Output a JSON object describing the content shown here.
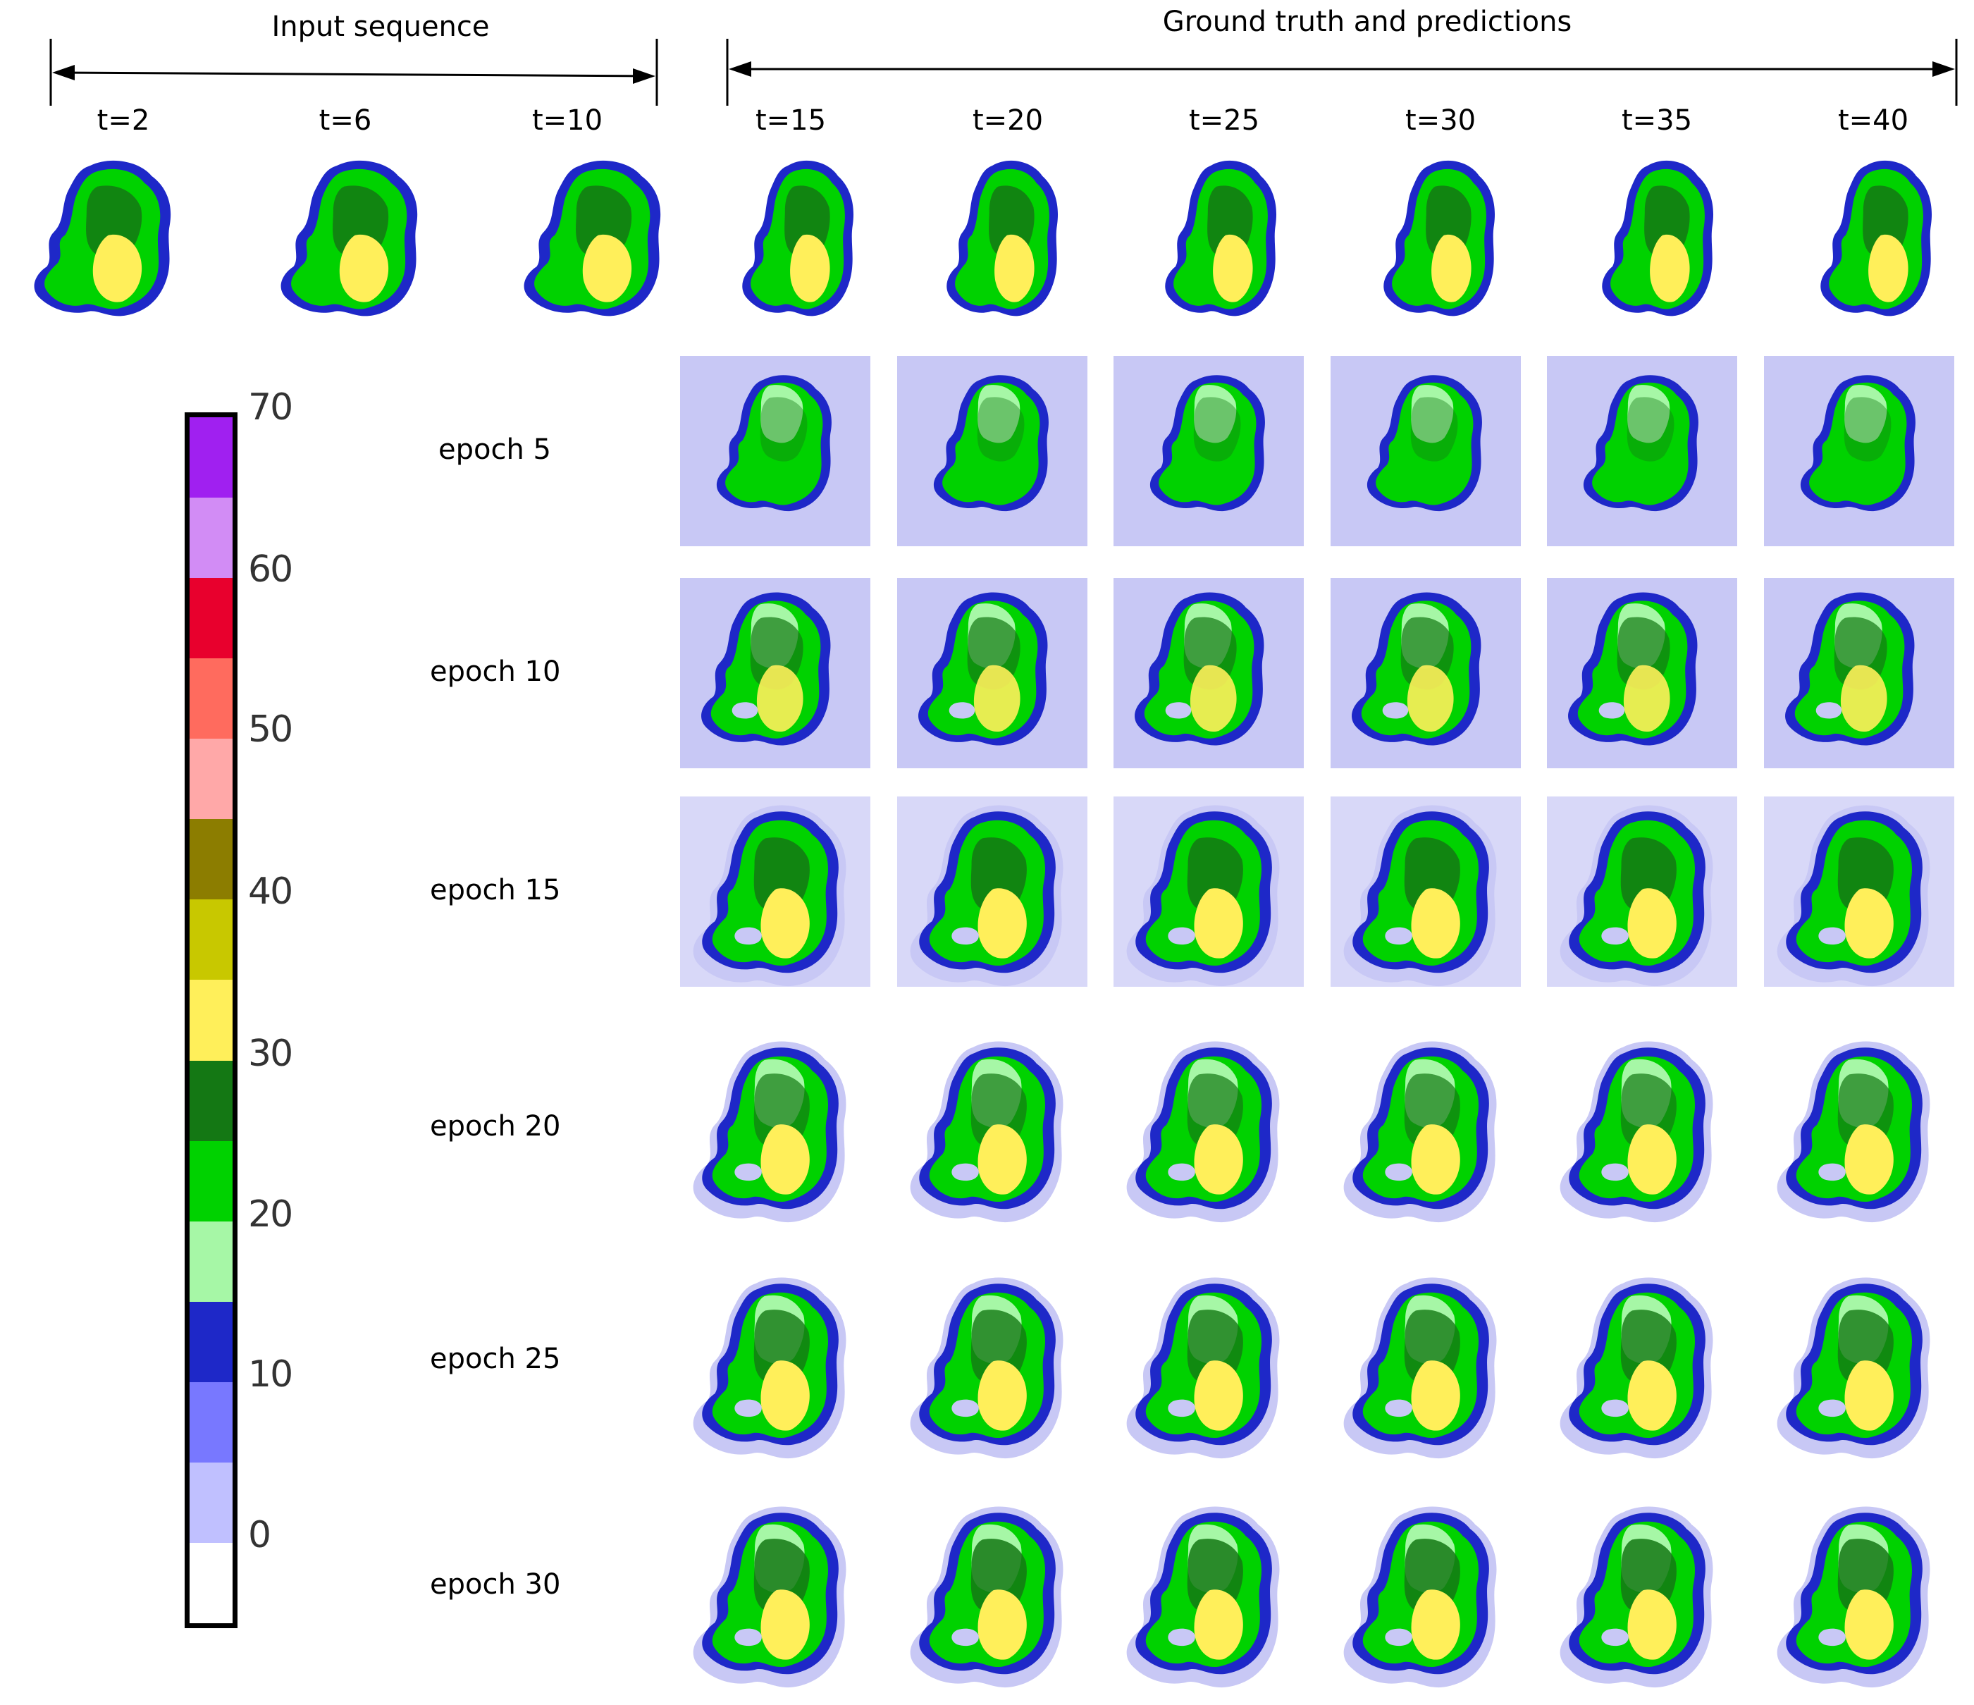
{
  "header": {
    "input_label": "Input sequence",
    "gt_label": "Ground truth and predictions"
  },
  "time_labels": [
    "t=2",
    "t=6",
    "t=10",
    "t=15",
    "t=20",
    "t=25",
    "t=30",
    "t=35",
    "t=40"
  ],
  "epochs": [
    "epoch 5",
    "epoch 10",
    "epoch 15",
    "epoch 20",
    "epoch 25",
    "epoch 30"
  ],
  "colorbar": {
    "ticks": [
      "70",
      "60",
      "50",
      "40",
      "30",
      "20",
      "10",
      "0"
    ],
    "colors_top_to_bottom": [
      "#a020f0",
      "#d28cf5",
      "#e8002d",
      "#ff6b5e",
      "#ffa8a8",
      "#8c7d00",
      "#c8c800",
      "#ffef5a",
      "#147814",
      "#00d200",
      "#a6f7a6",
      "#1e28c8",
      "#7878ff",
      "#c0c0ff",
      "#ffffff"
    ]
  },
  "palette": {
    "pale": "#c8c8f5",
    "blue": "#1e28c8",
    "light_green": "#a6f7a6",
    "green": "#00d200",
    "dark_green": "#147814",
    "yellow": "#ffef5a"
  }
}
